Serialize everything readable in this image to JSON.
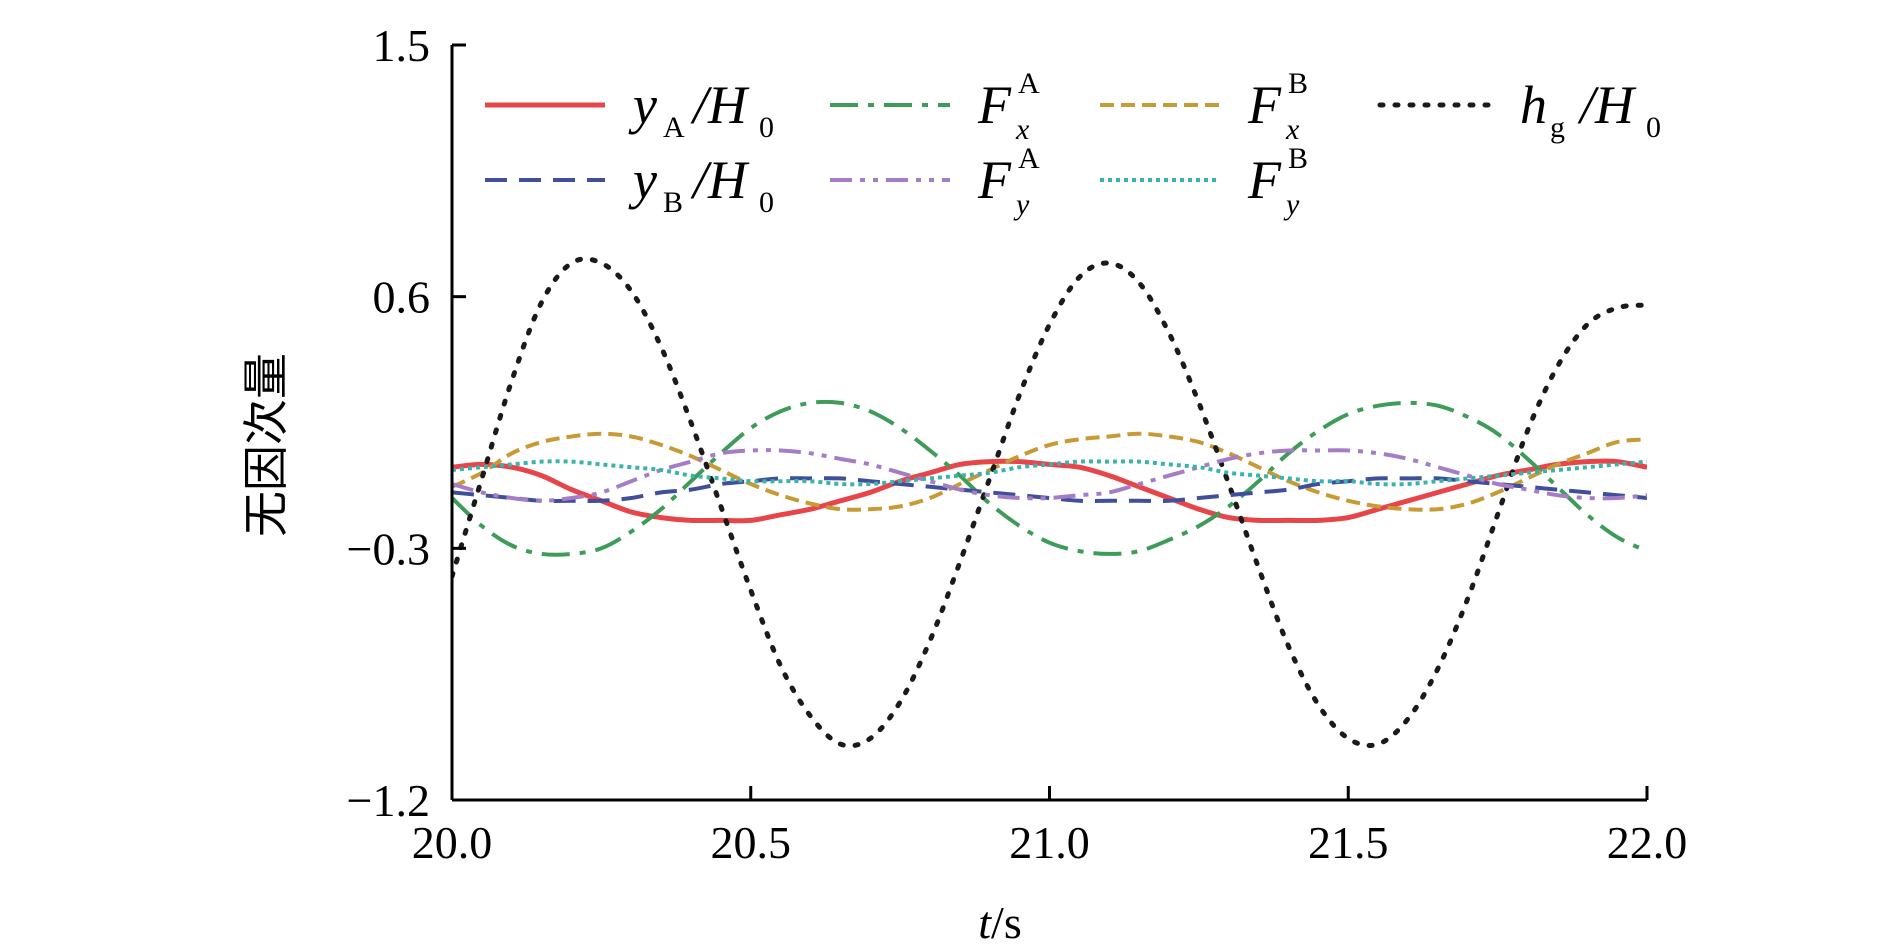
{
  "chart_data": {
    "type": "line",
    "title": "",
    "xlabel": {
      "var": "t",
      "unit": "/s"
    },
    "ylabel": "无因次量",
    "xlim": [
      20.0,
      22.0
    ],
    "ylim": [
      -1.2,
      1.5
    ],
    "xticks": [
      "20.0",
      "20.5",
      "21.0",
      "21.5",
      "22.0"
    ],
    "yticks": [
      "1.5",
      "0.6",
      "−0.3",
      "−1.2"
    ],
    "x": [
      20.0,
      20.05,
      20.1,
      20.15,
      20.2,
      20.25,
      20.3,
      20.35,
      20.4,
      20.45,
      20.5,
      20.55,
      20.6,
      20.65,
      20.7,
      20.75,
      20.8,
      20.85,
      20.9,
      20.95,
      21.0,
      21.05,
      21.1,
      21.15,
      21.2,
      21.25,
      21.3,
      21.35,
      21.4,
      21.45,
      21.5,
      21.55,
      21.6,
      21.65,
      21.7,
      21.75,
      21.8,
      21.85,
      21.9,
      21.95,
      22.0
    ],
    "series": [
      {
        "name": "yA/H0",
        "legend": {
          "main": "y",
          "sub": "A",
          "tail": "/H",
          "tail_sub": "0"
        },
        "color": "#e8454a",
        "dash": "",
        "width": 5,
        "values": [
          -0.01,
          0.0,
          -0.01,
          -0.04,
          -0.09,
          -0.13,
          -0.17,
          -0.19,
          -0.2,
          -0.2,
          -0.2,
          -0.18,
          -0.16,
          -0.13,
          -0.1,
          -0.06,
          -0.03,
          0.0,
          0.01,
          0.01,
          0.0,
          -0.01,
          -0.04,
          -0.08,
          -0.12,
          -0.16,
          -0.19,
          -0.2,
          -0.2,
          -0.2,
          -0.19,
          -0.16,
          -0.13,
          -0.1,
          -0.07,
          -0.04,
          -0.02,
          0.0,
          0.01,
          0.01,
          -0.01
        ]
      },
      {
        "name": "Fx^A",
        "legend": {
          "main": "F",
          "sub": "x",
          "sup": "A"
        },
        "color": "#3e9b58",
        "dash": "28 10 6 10",
        "width": 4,
        "values": [
          -0.12,
          -0.22,
          -0.29,
          -0.32,
          -0.32,
          -0.3,
          -0.24,
          -0.16,
          -0.06,
          0.04,
          0.13,
          0.19,
          0.22,
          0.22,
          0.19,
          0.13,
          0.05,
          -0.04,
          -0.14,
          -0.22,
          -0.28,
          -0.31,
          -0.32,
          -0.31,
          -0.27,
          -0.22,
          -0.15,
          -0.06,
          0.04,
          0.12,
          0.18,
          0.21,
          0.22,
          0.21,
          0.17,
          0.11,
          0.02,
          -0.08,
          -0.18,
          -0.26,
          -0.31
        ]
      },
      {
        "name": "Fx^B",
        "legend": {
          "main": "F",
          "sub": "x",
          "sup": "B"
        },
        "color": "#c89a35",
        "dash": "14 7",
        "width": 4,
        "values": [
          -0.08,
          -0.03,
          0.04,
          0.08,
          0.1,
          0.11,
          0.1,
          0.07,
          0.03,
          -0.02,
          -0.07,
          -0.11,
          -0.14,
          -0.16,
          -0.16,
          -0.15,
          -0.12,
          -0.07,
          -0.02,
          0.03,
          0.07,
          0.09,
          0.1,
          0.11,
          0.1,
          0.08,
          0.04,
          -0.01,
          -0.06,
          -0.1,
          -0.13,
          -0.15,
          -0.16,
          -0.16,
          -0.14,
          -0.1,
          -0.05,
          0.0,
          0.04,
          0.08,
          0.09
        ]
      },
      {
        "name": "hg/H0",
        "legend": {
          "main": "h",
          "sub": "g",
          "tail": "/H",
          "tail_sub": "0"
        },
        "color": "#1a1a1a",
        "dash": "3 12",
        "width": 5,
        "linecap": "round",
        "values": [
          -0.4,
          -0.05,
          0.3,
          0.58,
          0.72,
          0.72,
          0.62,
          0.42,
          0.15,
          -0.15,
          -0.45,
          -0.72,
          -0.9,
          -1.0,
          -0.98,
          -0.85,
          -0.63,
          -0.35,
          -0.05,
          0.25,
          0.5,
          0.67,
          0.72,
          0.65,
          0.47,
          0.22,
          -0.07,
          -0.37,
          -0.65,
          -0.86,
          -0.98,
          -1.0,
          -0.91,
          -0.73,
          -0.48,
          -0.18,
          0.12,
          0.35,
          0.5,
          0.56,
          0.57
        ]
      },
      {
        "name": "yB/H0",
        "legend": {
          "main": "y",
          "sub": "B",
          "tail": "/H",
          "tail_sub": "0"
        },
        "color": "#3f4f9c",
        "dash": "22 12",
        "width": 4,
        "values": [
          -0.1,
          -0.11,
          -0.12,
          -0.13,
          -0.13,
          -0.13,
          -0.12,
          -0.1,
          -0.09,
          -0.07,
          -0.06,
          -0.05,
          -0.05,
          -0.05,
          -0.06,
          -0.07,
          -0.08,
          -0.09,
          -0.1,
          -0.11,
          -0.12,
          -0.13,
          -0.13,
          -0.13,
          -0.13,
          -0.12,
          -0.11,
          -0.1,
          -0.09,
          -0.07,
          -0.06,
          -0.05,
          -0.05,
          -0.05,
          -0.06,
          -0.07,
          -0.08,
          -0.09,
          -0.1,
          -0.11,
          -0.12
        ]
      },
      {
        "name": "Fy^A",
        "legend": {
          "main": "F",
          "sub": "y",
          "sup": "A"
        },
        "color": "#a57cc6",
        "dash": "22 8 5 8 5 8",
        "width": 4,
        "values": [
          -0.07,
          -0.1,
          -0.12,
          -0.13,
          -0.12,
          -0.1,
          -0.06,
          -0.02,
          0.01,
          0.04,
          0.05,
          0.05,
          0.04,
          0.02,
          0.0,
          -0.03,
          -0.06,
          -0.09,
          -0.11,
          -0.12,
          -0.12,
          -0.11,
          -0.1,
          -0.07,
          -0.04,
          -0.01,
          0.02,
          0.04,
          0.05,
          0.05,
          0.05,
          0.04,
          0.02,
          -0.01,
          -0.04,
          -0.07,
          -0.09,
          -0.11,
          -0.12,
          -0.12,
          -0.11
        ]
      },
      {
        "name": "Fy^B",
        "legend": {
          "main": "F",
          "sub": "y",
          "sup": "B"
        },
        "color": "#3bb3ad",
        "dash": "4 4",
        "width": 4,
        "values": [
          -0.02,
          -0.01,
          0.0,
          0.01,
          0.01,
          0.0,
          -0.01,
          -0.02,
          -0.04,
          -0.05,
          -0.06,
          -0.06,
          -0.06,
          -0.07,
          -0.07,
          -0.06,
          -0.05,
          -0.04,
          -0.03,
          -0.01,
          0.0,
          0.01,
          0.01,
          0.01,
          0.0,
          -0.01,
          -0.03,
          -0.04,
          -0.05,
          -0.06,
          -0.06,
          -0.07,
          -0.07,
          -0.06,
          -0.05,
          -0.04,
          -0.03,
          -0.02,
          -0.01,
          0.0,
          0.01
        ]
      }
    ],
    "legend_position": "top"
  }
}
